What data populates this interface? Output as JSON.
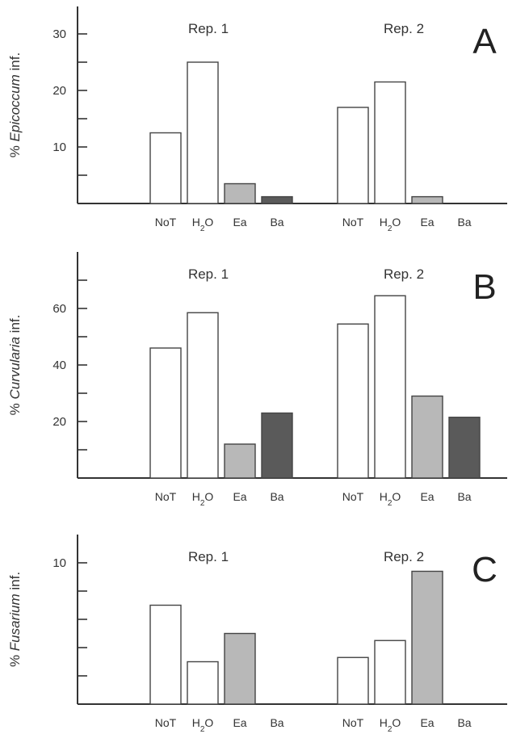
{
  "chart_data": [
    {
      "type": "bar",
      "panel_letter": "A",
      "ylabel": {
        "prefix": "% ",
        "italic": "Epicoccum",
        "suffix": " inf."
      },
      "yticks": [
        10,
        20,
        30
      ],
      "ylim": [
        0,
        35
      ],
      "groups": [
        {
          "label": "Rep. 1",
          "categories": [
            "NoT",
            "H2O",
            "Ea",
            "Ba"
          ],
          "values": [
            12.5,
            25,
            3.5,
            1.2
          ]
        },
        {
          "label": "Rep. 2",
          "categories": [
            "NoT",
            "H2O",
            "Ea",
            "Ba"
          ],
          "values": [
            17,
            21.5,
            1.2,
            0
          ]
        }
      ]
    },
    {
      "type": "bar",
      "panel_letter": "B",
      "ylabel": {
        "prefix": "% ",
        "italic": "Curvularia",
        "suffix": " inf."
      },
      "yticks": [
        20,
        40,
        60
      ],
      "ylim": [
        0,
        80
      ],
      "groups": [
        {
          "label": "Rep. 1",
          "categories": [
            "NoT",
            "H2O",
            "Ea",
            "Ba"
          ],
          "values": [
            46,
            58.5,
            12,
            23
          ]
        },
        {
          "label": "Rep. 2",
          "categories": [
            "NoT",
            "H2O",
            "Ea",
            "Ba"
          ],
          "values": [
            54.5,
            64.5,
            29,
            21.5
          ]
        }
      ]
    },
    {
      "type": "bar",
      "panel_letter": "C",
      "ylabel": {
        "prefix": "% ",
        "italic": "Fusarium",
        "suffix": " inf."
      },
      "yticks": [
        10
      ],
      "ylim": [
        0,
        12
      ],
      "groups": [
        {
          "label": "Rep. 1",
          "categories": [
            "NoT",
            "H2O",
            "Ea",
            "Ba"
          ],
          "values": [
            7,
            3,
            5,
            0
          ]
        },
        {
          "label": "Rep. 2",
          "categories": [
            "NoT",
            "H2O",
            "Ea",
            "Ba"
          ],
          "values": [
            3.3,
            4.5,
            9.4,
            0
          ]
        }
      ]
    }
  ],
  "colors": {
    "NoT": "#ffffff",
    "H2O": "#ffffff",
    "Ea": "#b8b8b8",
    "Ba": "#5a5a5a",
    "stroke": "#444444"
  }
}
